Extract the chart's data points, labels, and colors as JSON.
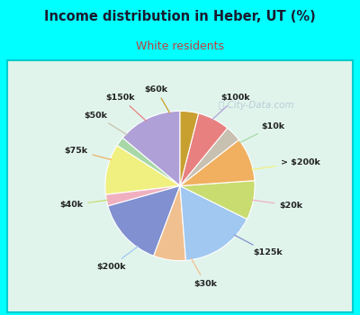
{
  "title": "Income distribution in Heber, UT (%)",
  "subtitle": "White residents",
  "bg_color": "#00ffff",
  "chart_bg_top_left": "#e8f8f0",
  "chart_bg": "#d8f0e8",
  "border_color": "#00cccc",
  "labels": [
    "$100k",
    "$10k",
    "> $200k",
    "$20k",
    "$125k",
    "$30k",
    "$200k",
    "$40k",
    "$75k",
    "$50k",
    "$150k",
    "$60k"
  ],
  "values": [
    14.0,
    2.0,
    11.0,
    2.5,
    15.0,
    7.0,
    16.5,
    8.5,
    9.5,
    3.5,
    7.0,
    4.0
  ],
  "colors": [
    "#b0a0d8",
    "#a8d8a8",
    "#f0f080",
    "#f0b0c0",
    "#8090d0",
    "#f0c090",
    "#a0c8f0",
    "#c8dc70",
    "#f0b060",
    "#c8c0b0",
    "#e88080",
    "#c8a030"
  ],
  "title_color": "#1a1a2e",
  "subtitle_color": "#c04040",
  "watermark_color": "#aabbcc",
  "startangle": 90
}
